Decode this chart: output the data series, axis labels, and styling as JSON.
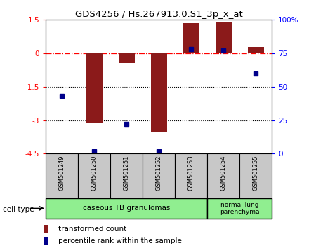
{
  "title": "GDS4256 / Hs.267913.0.S1_3p_x_at",
  "samples": [
    "GSM501249",
    "GSM501250",
    "GSM501251",
    "GSM501252",
    "GSM501253",
    "GSM501254",
    "GSM501255"
  ],
  "transformed_count": [
    0.0,
    -3.1,
    -0.45,
    -3.5,
    1.35,
    1.4,
    0.3
  ],
  "percentile_rank": [
    43,
    2,
    22,
    2,
    78,
    77,
    60
  ],
  "ylim_left": [
    -4.5,
    1.5
  ],
  "ylim_right": [
    0,
    100
  ],
  "yticks_left": [
    1.5,
    0,
    -1.5,
    -3,
    -4.5
  ],
  "yticks_right": [
    100,
    75,
    50,
    25,
    0
  ],
  "ytick_labels_left": [
    "1.5",
    "0",
    "-1.5",
    "-3",
    "-4.5"
  ],
  "ytick_labels_right": [
    "100%",
    "75",
    "50",
    "25",
    "0"
  ],
  "hlines_dotted": [
    -1.5,
    -3.0
  ],
  "hline_dashdot": 0.0,
  "bar_color": "#8B1A1A",
  "dot_color": "#00008B",
  "bar_width": 0.5,
  "group1_label": "caseous TB granulomas",
  "group2_label": "normal lung\nparenchyma",
  "group1_color": "#90EE90",
  "group2_color": "#90EE90",
  "cell_type_label": "cell type",
  "legend_bar_label": "transformed count",
  "legend_dot_label": "percentile rank within the sample",
  "bg_color": "#C8C8C8",
  "n_group1": 5,
  "n_group2": 2
}
